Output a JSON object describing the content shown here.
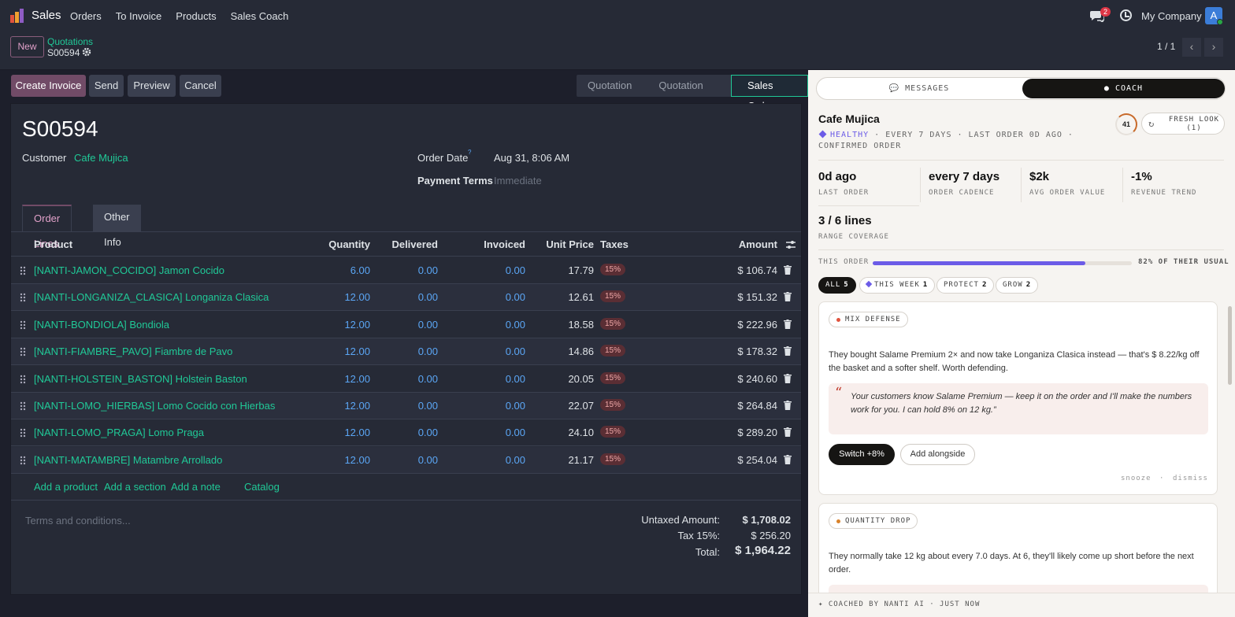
{
  "nav": {
    "app_name": "Sales",
    "menu": [
      "Orders",
      "To Invoice",
      "Products",
      "Sales Coach"
    ],
    "chat_count": "2",
    "company": "My Company",
    "avatar_letter": "A"
  },
  "control": {
    "new_label": "New",
    "breadcrumb_parent": "Quotations",
    "breadcrumb_current": "S00594",
    "pager": "1 / 1"
  },
  "actions": {
    "create_invoice": "Create Invoice",
    "send": "Send",
    "preview": "Preview",
    "cancel": "Cancel",
    "stages": [
      "Quotation",
      "Quotation Sent",
      "Sales Order"
    ],
    "active_stage": "Sales Order"
  },
  "form": {
    "title": "S00594",
    "customer_label": "Customer",
    "customer_value": "Cafe Mujica",
    "order_date_label": "Order Date",
    "order_date_help": "?",
    "order_date_value": "Aug 31, 8:06 AM",
    "payment_terms_label": "Payment Terms",
    "payment_terms_value": "Immediate",
    "tabs": [
      "Order Lines",
      "Other Info"
    ]
  },
  "table": {
    "headers": {
      "product": "Product",
      "quantity": "Quantity",
      "delivered": "Delivered",
      "invoiced": "Invoiced",
      "unit_price": "Unit Price",
      "taxes": "Taxes",
      "amount": "Amount"
    },
    "rows": [
      {
        "product": "[NANTI-JAMON_COCIDO] Jamon Cocido",
        "qty": "6.00",
        "delivered": "0.00",
        "invoiced": "0.00",
        "price": "17.79",
        "tax": "15%",
        "amount": "$ 106.74"
      },
      {
        "product": "[NANTI-LONGANIZA_CLASICA] Longaniza Clasica",
        "qty": "12.00",
        "delivered": "0.00",
        "invoiced": "0.00",
        "price": "12.61",
        "tax": "15%",
        "amount": "$ 151.32"
      },
      {
        "product": "[NANTI-BONDIOLA] Bondiola",
        "qty": "12.00",
        "delivered": "0.00",
        "invoiced": "0.00",
        "price": "18.58",
        "tax": "15%",
        "amount": "$ 222.96"
      },
      {
        "product": "[NANTI-FIAMBRE_PAVO] Fiambre de Pavo",
        "qty": "12.00",
        "delivered": "0.00",
        "invoiced": "0.00",
        "price": "14.86",
        "tax": "15%",
        "amount": "$ 178.32"
      },
      {
        "product": "[NANTI-HOLSTEIN_BASTON] Holstein Baston",
        "qty": "12.00",
        "delivered": "0.00",
        "invoiced": "0.00",
        "price": "20.05",
        "tax": "15%",
        "amount": "$ 240.60"
      },
      {
        "product": "[NANTI-LOMO_HIERBAS] Lomo Cocido con Hierbas",
        "qty": "12.00",
        "delivered": "0.00",
        "invoiced": "0.00",
        "price": "22.07",
        "tax": "15%",
        "amount": "$ 264.84"
      },
      {
        "product": "[NANTI-LOMO_PRAGA] Lomo Praga",
        "qty": "12.00",
        "delivered": "0.00",
        "invoiced": "0.00",
        "price": "24.10",
        "tax": "15%",
        "amount": "$ 289.20"
      },
      {
        "product": "[NANTI-MATAMBRE] Matambre Arrollado",
        "qty": "12.00",
        "delivered": "0.00",
        "invoiced": "0.00",
        "price": "21.17",
        "tax": "15%",
        "amount": "$ 254.04"
      }
    ],
    "add_links": [
      "Add a product",
      "Add a section",
      "Add a note",
      "Catalog"
    ]
  },
  "totals": {
    "terms_placeholder": "Terms and conditions...",
    "untaxed_label": "Untaxed Amount:",
    "untaxed_value": "$ 1,708.02",
    "tax_label": "Tax 15%:",
    "tax_value": "$ 256.20",
    "total_label": "Total:",
    "total_value": "$ 1,964.22"
  },
  "coach": {
    "tab_messages": "MESSAGES",
    "tab_coach": "COACH",
    "customer": "Cafe Mujica",
    "health_status": "HEALTHY",
    "health_details": " · EVERY 7 DAYS · LAST ORDER 0D AGO · CONFIRMED ORDER",
    "score": "41",
    "fresh_look": "FRESH LOOK (1)",
    "kpis": [
      {
        "value": "0d ago",
        "label": "LAST ORDER"
      },
      {
        "value": "every 7 days",
        "label": "ORDER CADENCE"
      },
      {
        "value": "$2k",
        "label": "AVG ORDER VALUE"
      },
      {
        "value": "-1%",
        "label": "REVENUE TREND"
      },
      {
        "value": "3 / 6 lines",
        "label": "RANGE COVERAGE"
      }
    ],
    "this_order_label": "THIS ORDER",
    "usual_percent": 82,
    "usual_text": "82% OF THEIR USUAL",
    "filters": [
      {
        "label": "ALL",
        "count": "5"
      },
      {
        "label": "THIS WEEK",
        "count": "1"
      },
      {
        "label": "PROTECT",
        "count": "2"
      },
      {
        "label": "GROW",
        "count": "2"
      }
    ],
    "card1": {
      "tag": "MIX DEFENSE",
      "text": "They bought Salame Premium 2× and now take Longaniza Clasica instead — that's $ 8.22/kg off the basket and a softer shelf. Worth defending.",
      "quote": "Your customers know Salame Premium — keep it on the order and I'll make the numbers work for you. I can hold 8% on 12 kg.”",
      "quote_mark": "“",
      "btn_primary": "Switch +8%",
      "btn_secondary": "Add alongside",
      "snooze": "snooze",
      "dot": "·",
      "dismiss": "dismiss",
      "tag_color": "#e0533d"
    },
    "card2": {
      "tag": "QUANTITY DROP",
      "text": "They normally take 12 kg about every 7.0 days. At 6, they'll likely come up short before the next order.",
      "tag_color": "#d9822b"
    },
    "footer": "✦ COACHED BY NANTI AI · JUST NOW"
  },
  "colors": {
    "accent_teal": "#20c997",
    "brand_purple": "#714b67",
    "coach_purple": "#6c5ce7"
  }
}
